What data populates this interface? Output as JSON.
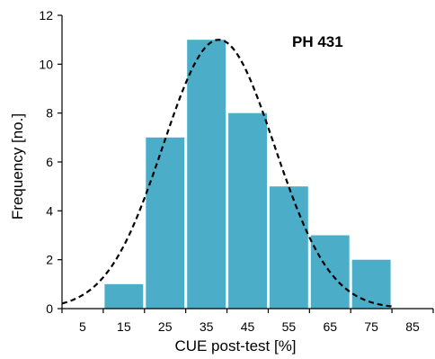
{
  "chart_data": {
    "type": "bar",
    "title": "",
    "annotation": "PH 431",
    "xlabel": "CUE post-test [%]",
    "ylabel": "Frequency [no.]",
    "x_ticks": [
      5,
      15,
      25,
      35,
      45,
      55,
      65,
      75,
      85
    ],
    "xlim": [
      0,
      90
    ],
    "ylim": [
      0,
      12
    ],
    "y_ticks": [
      0,
      2,
      4,
      6,
      8,
      10,
      12
    ],
    "bin_width": 10,
    "bins": [
      {
        "center": 15,
        "value": 1
      },
      {
        "center": 25,
        "value": 7
      },
      {
        "center": 35,
        "value": 11
      },
      {
        "center": 45,
        "value": 8
      },
      {
        "center": 55,
        "value": 5
      },
      {
        "center": 65,
        "value": 3
      },
      {
        "center": 75,
        "value": 2
      }
    ],
    "fit_curve": {
      "type": "normal",
      "mean": 38,
      "sd": 13.5,
      "peak": 11,
      "x_range": [
        0,
        80
      ],
      "style": "dashed"
    },
    "bar_color": "#4BADC8",
    "curve_color": "#000000",
    "grid": false,
    "legend": "none"
  }
}
